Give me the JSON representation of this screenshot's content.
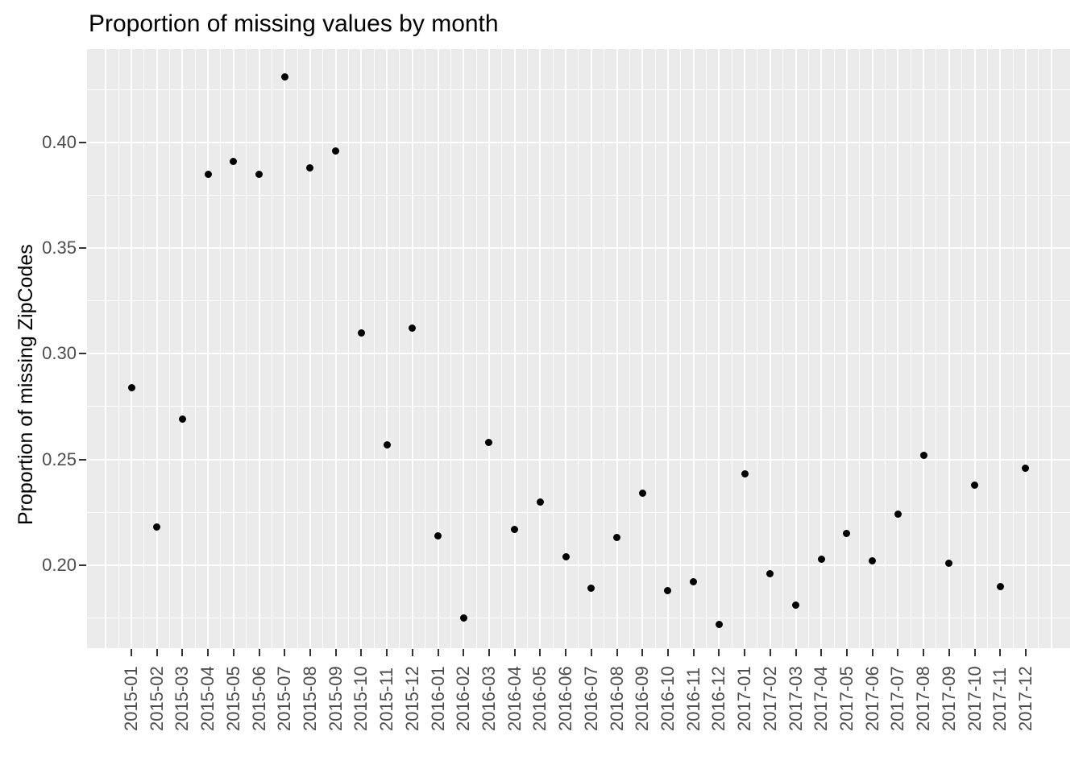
{
  "chart_data": {
    "type": "scatter",
    "title": "Proportion of missing values by month",
    "xlabel": "",
    "ylabel": "Proportion of missing ZipCodes",
    "x": [
      "2015-01",
      "2015-02",
      "2015-03",
      "2015-04",
      "2015-05",
      "2015-06",
      "2015-07",
      "2015-08",
      "2015-09",
      "2015-10",
      "2015-11",
      "2015-12",
      "2016-01",
      "2016-02",
      "2016-03",
      "2016-04",
      "2016-05",
      "2016-06",
      "2016-07",
      "2016-08",
      "2016-09",
      "2016-10",
      "2016-11",
      "2016-12",
      "2017-01",
      "2017-02",
      "2017-03",
      "2017-04",
      "2017-05",
      "2017-06",
      "2017-07",
      "2017-08",
      "2017-09",
      "2017-10",
      "2017-11",
      "2017-12"
    ],
    "values": [
      0.284,
      0.218,
      0.269,
      0.385,
      0.391,
      0.385,
      0.431,
      0.388,
      0.396,
      0.31,
      0.257,
      0.312,
      0.214,
      0.175,
      0.258,
      0.217,
      0.23,
      0.204,
      0.189,
      0.213,
      0.234,
      0.188,
      0.192,
      0.172,
      0.243,
      0.196,
      0.181,
      0.203,
      0.215,
      0.202,
      0.224,
      0.252,
      0.201,
      0.238,
      0.19,
      0.246
    ],
    "ylim": [
      0.159,
      0.444
    ],
    "y_major_ticks": [
      0.4,
      0.35,
      0.3,
      0.25,
      0.2
    ],
    "y_tick_labels": [
      "0.40",
      "0.35",
      "0.30",
      "0.25",
      "0.20"
    ],
    "y_minor_ticks": [
      0.425,
      0.375,
      0.325,
      0.275,
      0.225,
      0.175
    ],
    "grid": "major-and-minor",
    "legend": "none",
    "point_color": "#000000",
    "panel_background": "#EBEBEB",
    "gridline_color": "#FFFFFF",
    "tick_label_color": "#4D4D4D",
    "tick_mark_color": "#333333"
  }
}
